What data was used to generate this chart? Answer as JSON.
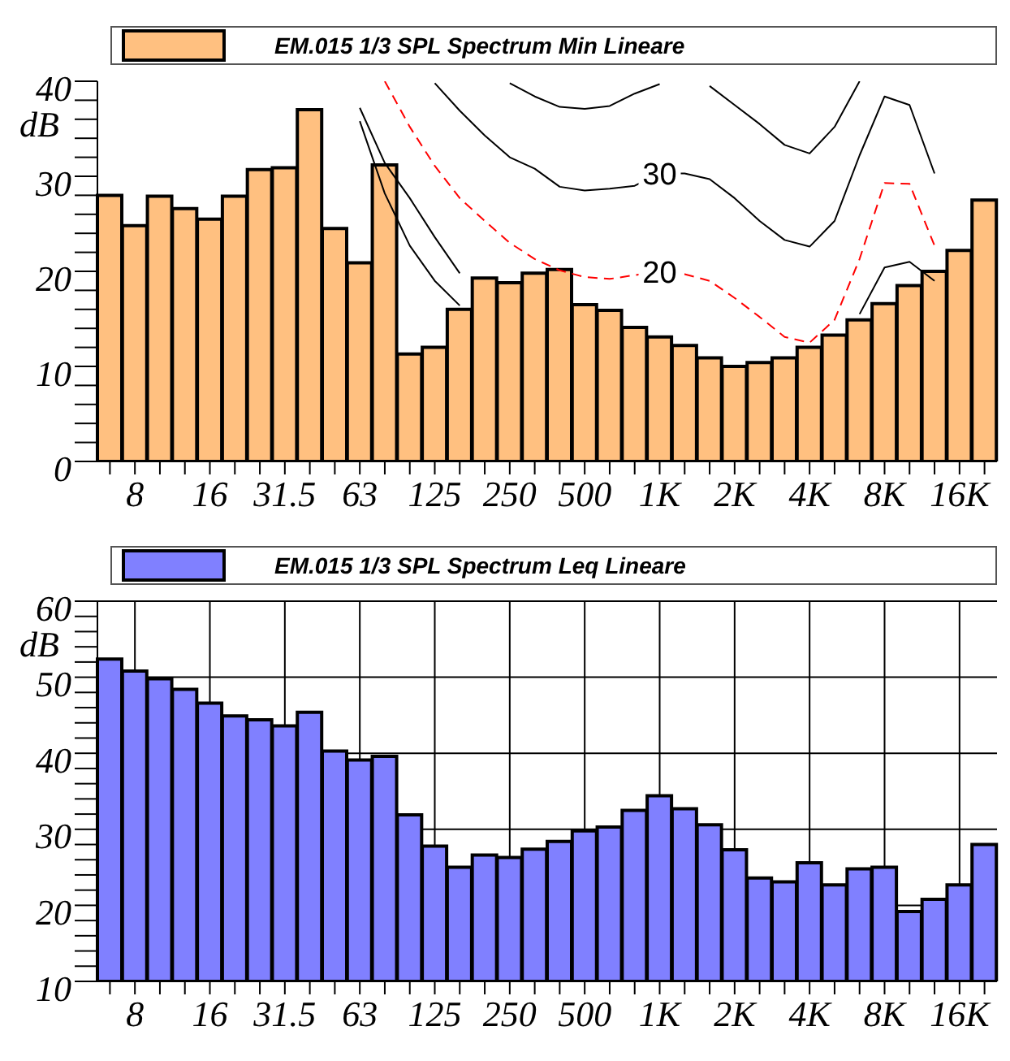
{
  "chart_data": [
    {
      "type": "bar",
      "legend": "top",
      "grid": false,
      "ylabel": "dB",
      "ylim": [
        0,
        40
      ],
      "yticks": [
        0,
        {
          "value": 2,
          "label": null
        },
        {
          "value": 4,
          "label": null
        },
        {
          "value": 6,
          "label": null
        },
        {
          "value": 8,
          "label": null
        },
        10,
        {
          "value": 12,
          "label": null
        },
        {
          "value": 14,
          "label": null
        },
        {
          "value": 16,
          "label": null
        },
        {
          "value": 18,
          "label": null
        },
        20,
        {
          "value": 22,
          "label": null
        },
        {
          "value": 24,
          "label": null
        },
        {
          "value": 26,
          "label": null
        },
        {
          "value": 28,
          "label": null
        },
        30,
        {
          "value": 32,
          "label": null
        },
        {
          "value": 34,
          "label": null
        },
        {
          "value": 36,
          "label": null
        },
        {
          "value": 38,
          "label": null
        },
        40
      ],
      "categories": [
        null,
        "8",
        null,
        null,
        "16",
        null,
        null,
        "31.5",
        null,
        null,
        "63",
        null,
        null,
        "125",
        null,
        null,
        "250",
        null,
        null,
        "500",
        null,
        null,
        "1K",
        null,
        null,
        "2K",
        null,
        null,
        "4K",
        null,
        null,
        "8K",
        null,
        null,
        "16K",
        null
      ],
      "series": [
        {
          "name": "EM.015 1/3 SPL Spectrum Min Lineare",
          "color": "#ffc080",
          "values": [
            28,
            24.8,
            27.9,
            26.6,
            25.5,
            27.9,
            30.7,
            30.9,
            37,
            24.5,
            20.9,
            31.2,
            11.3,
            12,
            16,
            19.3,
            18.8,
            19.8,
            20.2,
            16.5,
            15.9,
            14.1,
            13.1,
            12.2,
            10.9,
            10,
            10.4,
            10.9,
            12,
            13.3,
            14.9,
            16.6,
            18.5,
            20,
            22.2,
            27.5
          ]
        },
        {
          "type": "line",
          "color": "#000000",
          "values": [
            null,
            null,
            null,
            null,
            null,
            null,
            null,
            null,
            null,
            null,
            null,
            null,
            null,
            null,
            null,
            null,
            39.8,
            38.4,
            37.3,
            37.1,
            37.4,
            38.7,
            39.7,
            null,
            39.5,
            37.5,
            35.5,
            33.3,
            32.4,
            35.2,
            40,
            null,
            null,
            null,
            null,
            null
          ]
        },
        {
          "type": "line",
          "color": "#000000",
          "values": [
            null,
            null,
            null,
            null,
            null,
            null,
            null,
            null,
            null,
            null,
            null,
            null,
            null,
            39.8,
            36.9,
            34.3,
            32,
            30.8,
            28.9,
            28.5,
            28.7,
            29,
            30.3,
            30.3,
            29.7,
            27.7,
            25.3,
            23.3,
            22.6,
            25.3,
            32.2,
            38.4,
            37.5,
            30.3,
            null,
            null
          ]
        },
        {
          "type": "line",
          "color": "#ff0000",
          "line_style": "dashed",
          "values": [
            null,
            null,
            null,
            null,
            null,
            null,
            null,
            null,
            null,
            null,
            null,
            40,
            35.2,
            31.1,
            27.7,
            25.3,
            23,
            21.3,
            20.1,
            19.4,
            19.2,
            19.6,
            20,
            19.7,
            19,
            17.2,
            15.2,
            13.1,
            12.5,
            14.9,
            21.3,
            29.3,
            29.2,
            22.7,
            null,
            null
          ]
        },
        {
          "type": "line",
          "color": "#000000",
          "values": [
            null,
            null,
            null,
            null,
            null,
            null,
            null,
            null,
            null,
            null,
            null,
            null,
            null,
            null,
            null,
            null,
            null,
            null,
            null,
            null,
            null,
            null,
            null,
            null,
            null,
            null,
            null,
            null,
            null,
            null,
            15.5,
            20.4,
            21,
            19,
            null,
            null
          ]
        },
        {
          "type": "line",
          "color": "#000000",
          "values": [
            null,
            null,
            null,
            null,
            null,
            null,
            null,
            null,
            null,
            null,
            35.8,
            28.2,
            22.7,
            19,
            16.4,
            null,
            null,
            null,
            null,
            null,
            null,
            null,
            null,
            null,
            null,
            null,
            null,
            null,
            null,
            null,
            null,
            null,
            null,
            null,
            null,
            null
          ]
        },
        {
          "type": "line",
          "color": "#000000",
          "values": [
            null,
            null,
            null,
            null,
            null,
            null,
            null,
            null,
            null,
            null,
            37.2,
            31.4,
            27.7,
            23.6,
            19.8,
            null,
            null,
            null,
            null,
            null,
            null,
            null,
            null,
            null,
            null,
            null,
            null,
            null,
            null,
            null,
            null,
            null,
            null,
            null,
            null,
            null
          ]
        }
      ],
      "annotations": [
        {
          "text": "30",
          "x": "1K",
          "y": 30.3
        },
        {
          "text": "20",
          "x": "1K",
          "y": 20
        }
      ]
    },
    {
      "type": "bar",
      "legend": "top",
      "grid": true,
      "ylabel": "dB",
      "ylim": [
        10,
        60
      ],
      "yticks": [
        10,
        {
          "value": 12,
          "label": null
        },
        {
          "value": 14,
          "label": null
        },
        {
          "value": 16,
          "label": null
        },
        {
          "value": 18,
          "label": null
        },
        20,
        {
          "value": 22,
          "label": null
        },
        {
          "value": 24,
          "label": null
        },
        {
          "value": 26,
          "label": null
        },
        {
          "value": 28,
          "label": null
        },
        30,
        {
          "value": 32,
          "label": null
        },
        {
          "value": 34,
          "label": null
        },
        {
          "value": 36,
          "label": null
        },
        {
          "value": 38,
          "label": null
        },
        40,
        {
          "value": 42,
          "label": null
        },
        {
          "value": 44,
          "label": null
        },
        {
          "value": 46,
          "label": null
        },
        {
          "value": 48,
          "label": null
        },
        50,
        {
          "value": 52,
          "label": null
        },
        {
          "value": 54,
          "label": null
        },
        {
          "value": 56,
          "label": null
        },
        {
          "value": 58,
          "label": null
        },
        60
      ],
      "categories": [
        null,
        "8",
        null,
        null,
        "16",
        null,
        null,
        "31.5",
        null,
        null,
        "63",
        null,
        null,
        "125",
        null,
        null,
        "250",
        null,
        null,
        "500",
        null,
        null,
        "1K",
        null,
        null,
        "2K",
        null,
        null,
        "4K",
        null,
        null,
        "8K",
        null,
        null,
        "16K",
        null
      ],
      "series": [
        {
          "name": "EM.015 1/3 SPL Spectrum Leq Lineare",
          "color": "#8080ff",
          "values": [
            52.4,
            50.8,
            49.8,
            48.4,
            46.6,
            44.9,
            44.4,
            43.6,
            45.4,
            40.3,
            39.1,
            39.6,
            31.9,
            27.8,
            25,
            26.6,
            26.3,
            27.4,
            28.4,
            29.8,
            30.3,
            32.5,
            34.4,
            32.7,
            30.6,
            27.3,
            23.6,
            23.1,
            25.6,
            22.7,
            24.8,
            25,
            19.2,
            20.8,
            22.7,
            28
          ]
        }
      ]
    }
  ]
}
